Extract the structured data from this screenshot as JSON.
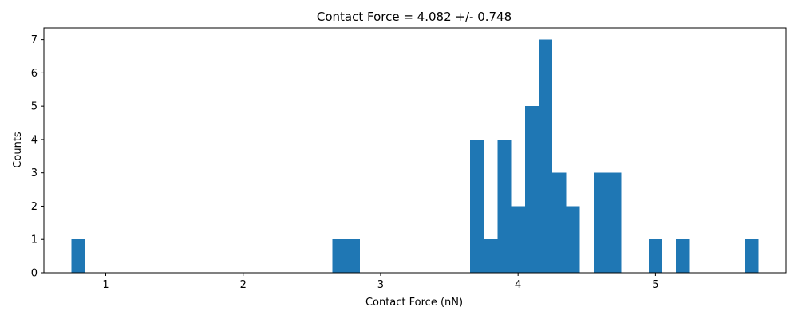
{
  "chart_data": {
    "type": "bar",
    "title": "Contact Force = 4.082 +/- 0.748",
    "xlabel": "Contact Force (nN)",
    "ylabel": "Counts",
    "xlim": [
      0.55,
      5.95
    ],
    "ylim": [
      0,
      7.35
    ],
    "xticks": [
      1,
      2,
      3,
      4,
      5
    ],
    "yticks": [
      0,
      1,
      2,
      3,
      4,
      5,
      6,
      7
    ],
    "bin_width": 0.1,
    "bins": [
      {
        "x0": 0.75,
        "count": 1
      },
      {
        "x0": 2.65,
        "count": 1
      },
      {
        "x0": 2.75,
        "count": 1
      },
      {
        "x0": 3.65,
        "count": 4
      },
      {
        "x0": 3.75,
        "count": 1
      },
      {
        "x0": 3.85,
        "count": 4
      },
      {
        "x0": 3.95,
        "count": 2
      },
      {
        "x0": 4.05,
        "count": 5
      },
      {
        "x0": 4.15,
        "count": 7
      },
      {
        "x0": 4.25,
        "count": 3
      },
      {
        "x0": 4.35,
        "count": 2
      },
      {
        "x0": 4.55,
        "count": 3
      },
      {
        "x0": 4.65,
        "count": 3
      },
      {
        "x0": 4.95,
        "count": 1
      },
      {
        "x0": 5.15,
        "count": 1
      },
      {
        "x0": 5.65,
        "count": 1
      }
    ],
    "bar_color": "#1f77b4",
    "grid": false
  }
}
